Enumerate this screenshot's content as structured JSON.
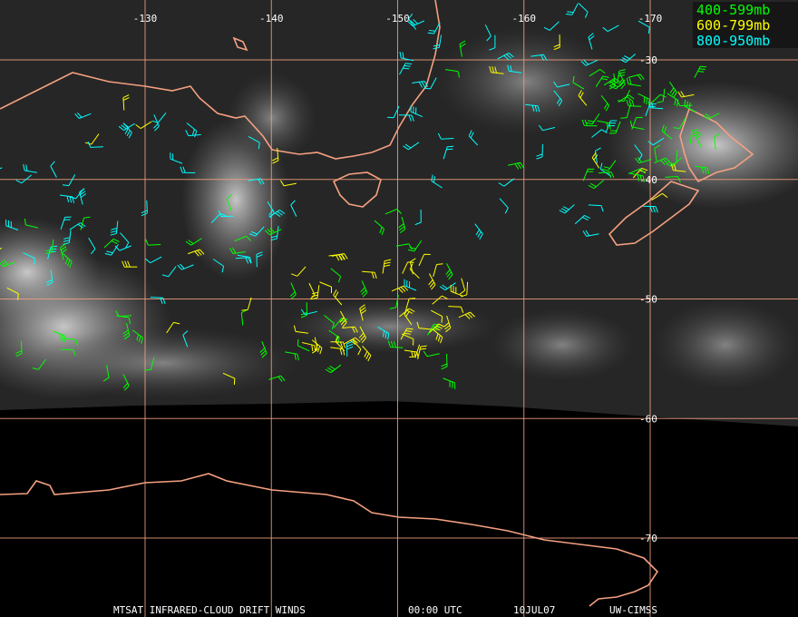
{
  "grid": {
    "longitudes": [
      -130,
      -140,
      -150,
      -160,
      -170
    ],
    "latitudes": [
      -30,
      -40,
      -50,
      -60,
      -70
    ]
  },
  "legend": [
    {
      "label": "400-599mb",
      "color": "#00ff00"
    },
    {
      "label": "600-799mb",
      "color": "#ffff00"
    },
    {
      "label": "800-950mb",
      "color": "#00ffff"
    }
  ],
  "footer": [
    "MTSAT INFRARED-CLOUD DRIFT WINDS",
    "00:00 UTC",
    "10JUL07",
    "UW-CIMSS"
  ]
}
